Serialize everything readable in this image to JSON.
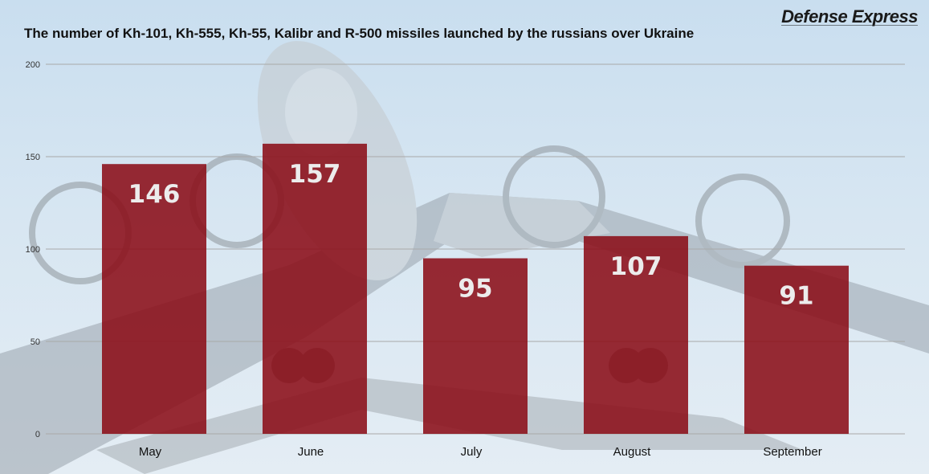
{
  "header": {
    "title": "The number of Kh-101, Kh-555, Kh-55, Kalibr and R-500 missiles launched by the russians over Ukraine",
    "brand": "Defense Express"
  },
  "colors": {
    "bar": "#8b0e18",
    "grid": "#a9a9a9",
    "bar_label": "#ececec"
  },
  "background_image": "tu-95-bomber-photo",
  "chart_data": {
    "type": "bar",
    "title": "The number of Kh-101, Kh-555, Kh-55, Kalibr and R-500 missiles launched by the russians over Ukraine",
    "categories": [
      "May",
      "June",
      "July",
      "August",
      "September"
    ],
    "values": [
      146,
      157,
      95,
      107,
      91
    ],
    "data_labels": [
      "146",
      "157",
      "95",
      "107",
      "91"
    ],
    "xlabel": "",
    "ylabel": "",
    "ylim": [
      0,
      200
    ],
    "yticks": [
      0,
      50,
      100,
      150,
      200
    ],
    "grid": true,
    "legend": "none"
  }
}
